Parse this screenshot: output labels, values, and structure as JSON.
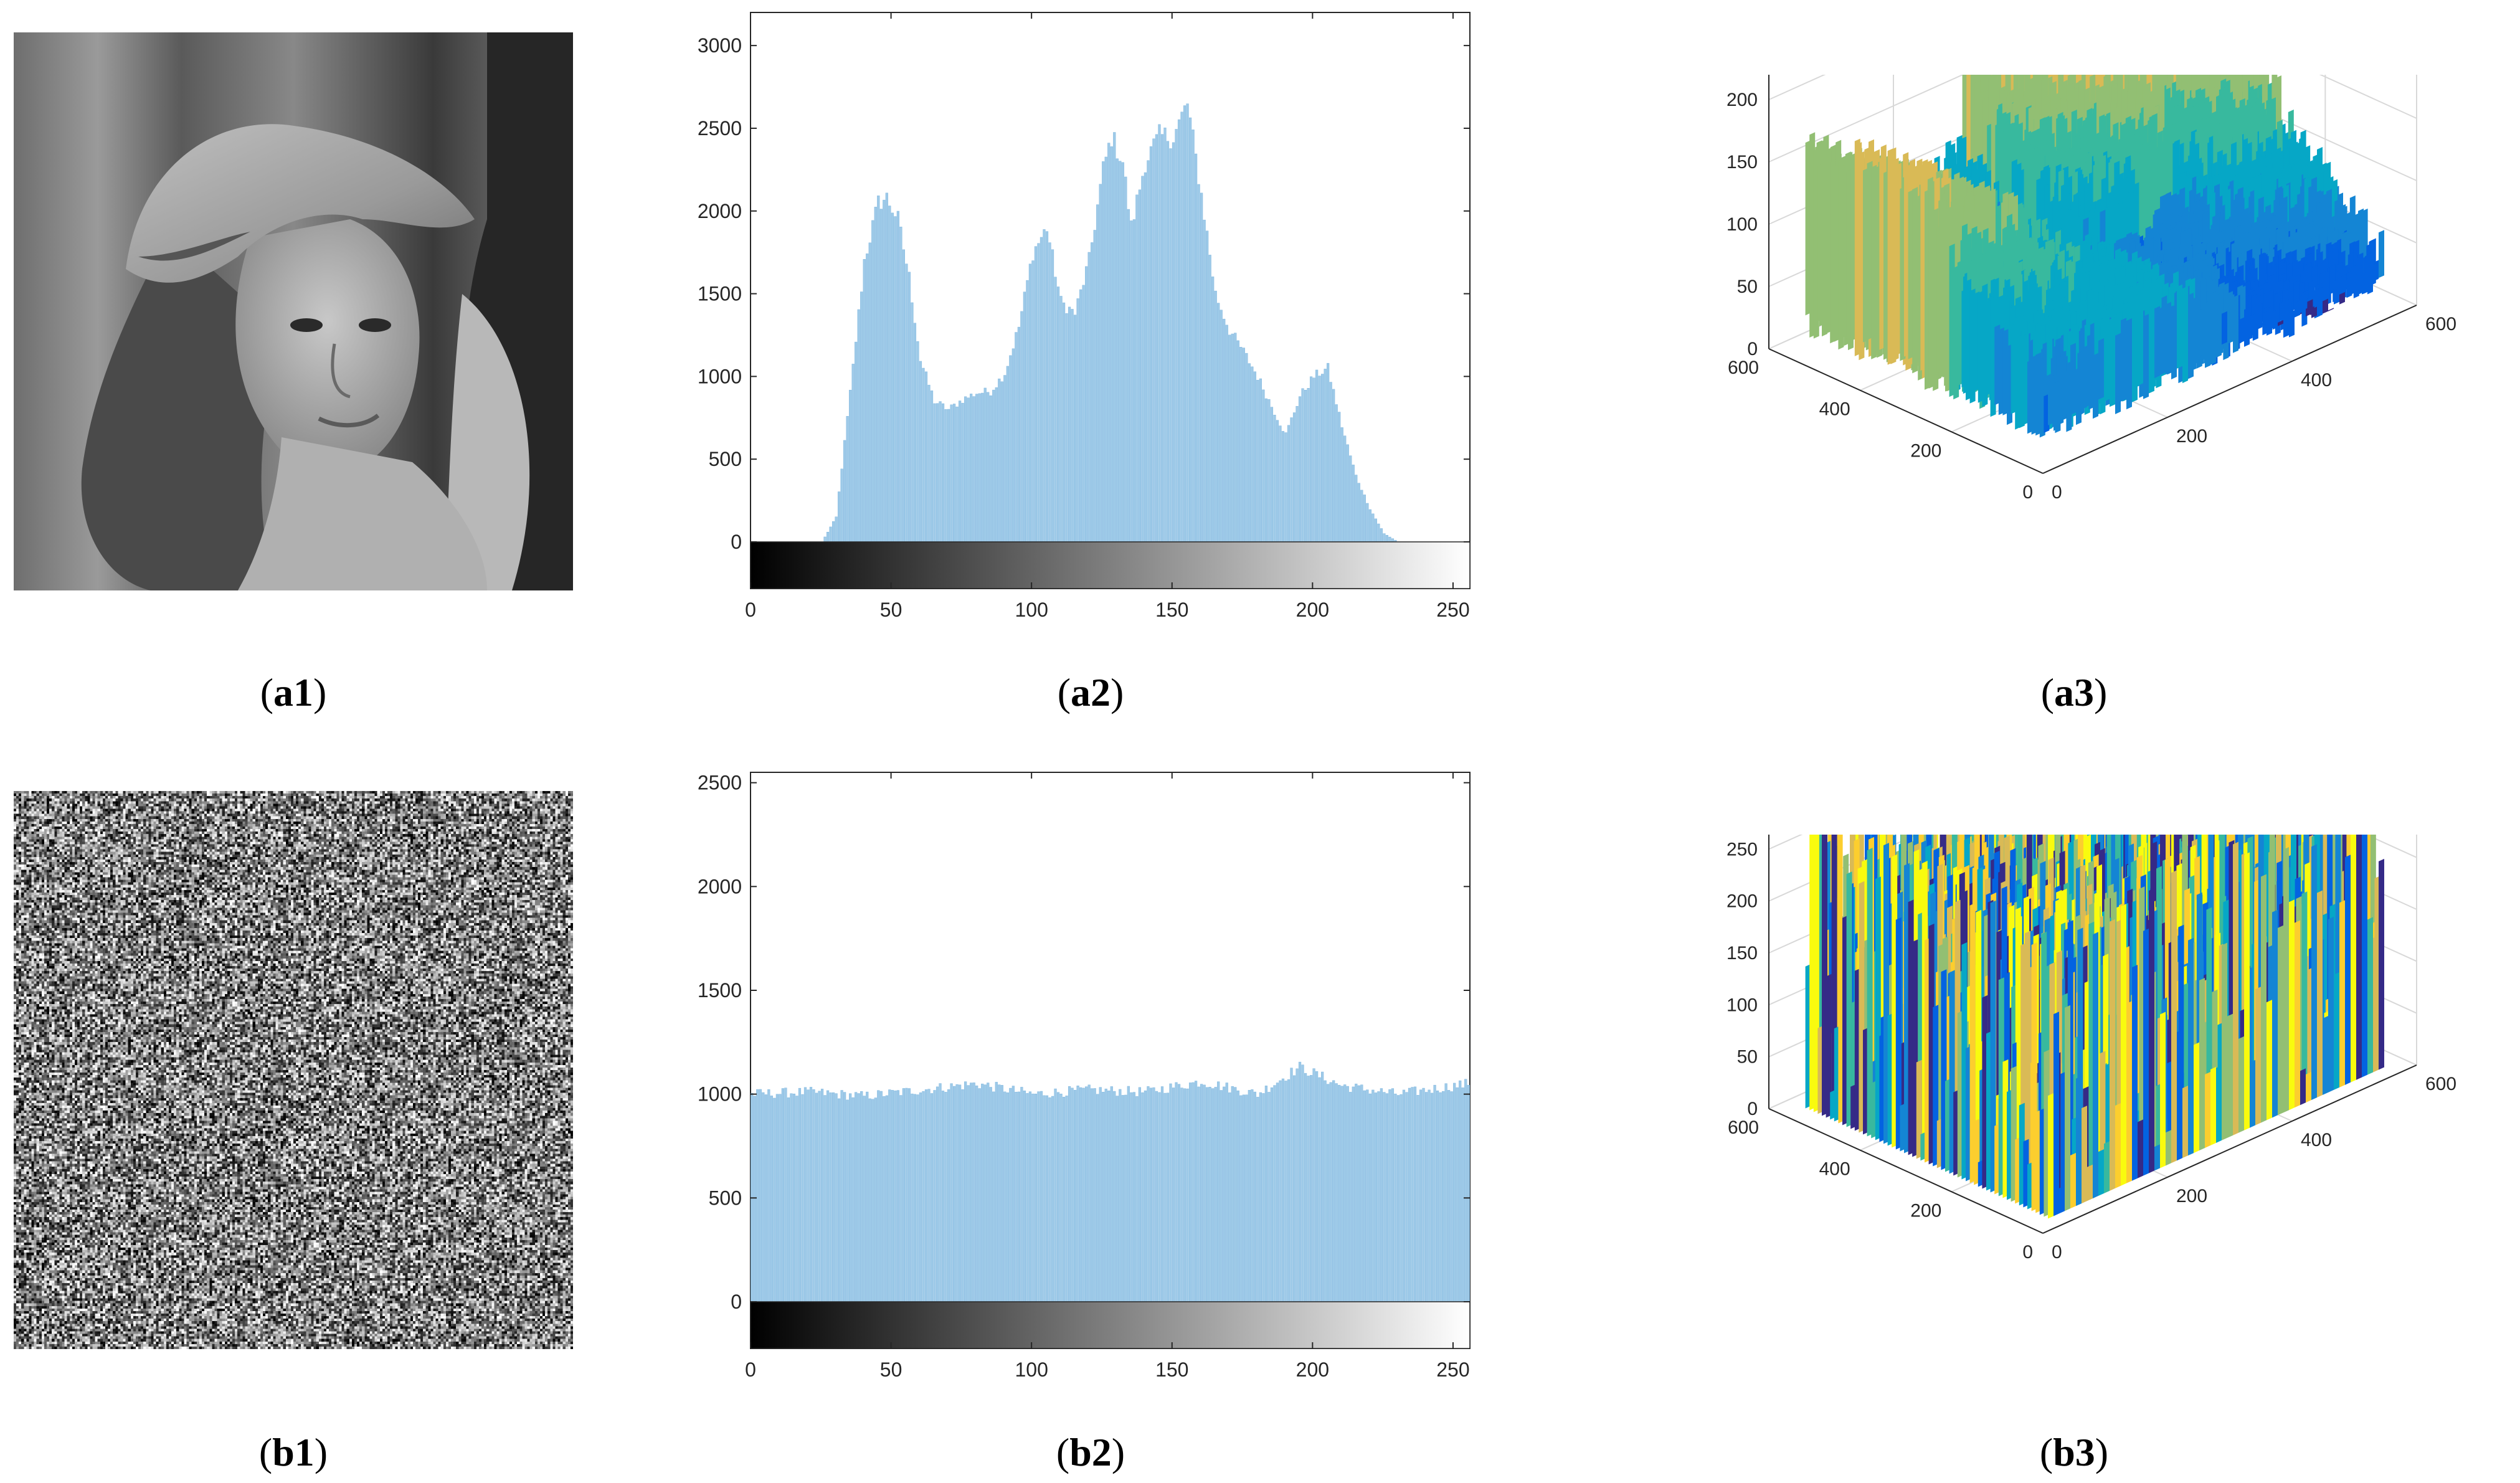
{
  "panels": {
    "a1": {
      "caption": "a1",
      "content": "grayscale photograph: woman wearing a wide-brimmed hat with feather"
    },
    "a2": {
      "caption": "a2"
    },
    "a3": {
      "caption": "a3"
    },
    "b1": {
      "caption": "b1",
      "content": "encrypted noise image"
    },
    "b2": {
      "caption": "b2"
    },
    "b3": {
      "caption": "b3"
    }
  },
  "chart_data": [
    {
      "id": "a2",
      "type": "bar",
      "title": "",
      "xlabel": "",
      "ylabel": "",
      "xlim": [
        0,
        255
      ],
      "ylim": [
        0,
        3200
      ],
      "xticks": [
        0,
        50,
        100,
        150,
        200,
        250
      ],
      "yticks": [
        0,
        500,
        1000,
        1500,
        2000,
        2500,
        3000
      ],
      "color": "#9ecae8",
      "colorbar": "grayscale 0-255",
      "x": [
        25,
        30,
        35,
        40,
        45,
        48,
        52,
        56,
        60,
        65,
        70,
        75,
        80,
        85,
        90,
        95,
        100,
        105,
        110,
        115,
        120,
        125,
        128,
        132,
        135,
        140,
        145,
        150,
        155,
        160,
        165,
        170,
        175,
        180,
        185,
        190,
        195,
        200,
        205,
        210,
        215,
        220,
        225,
        230
      ],
      "values": [
        0,
        150,
        900,
        1700,
        2050,
        2080,
        1950,
        1600,
        1100,
        850,
        800,
        860,
        900,
        910,
        1020,
        1300,
        1750,
        1900,
        1450,
        1380,
        1700,
        2250,
        2450,
        2300,
        1900,
        2300,
        2450,
        2450,
        2650,
        2100,
        1500,
        1280,
        1150,
        1000,
        820,
        650,
        880,
        1000,
        1050,
        700,
        400,
        200,
        50,
        0
      ]
    },
    {
      "id": "b2",
      "type": "bar",
      "title": "",
      "xlabel": "",
      "ylabel": "",
      "xlim": [
        0,
        255
      ],
      "ylim": [
        0,
        2550
      ],
      "xticks": [
        0,
        50,
        100,
        150,
        200,
        250
      ],
      "yticks": [
        0,
        500,
        1000,
        1500,
        2000,
        2500
      ],
      "color": "#9ecae8",
      "colorbar": "grayscale 0-255",
      "x": [
        0,
        20,
        40,
        60,
        80,
        100,
        120,
        140,
        160,
        180,
        195,
        210,
        230,
        255
      ],
      "values": [
        1000,
        1010,
        990,
        1020,
        1050,
        1000,
        1020,
        1010,
        1060,
        1000,
        1130,
        1040,
        1000,
        1050
      ]
    },
    {
      "id": "a3",
      "type": "surface",
      "zticks": [
        0,
        50,
        100,
        150,
        200,
        250
      ],
      "xticks": [
        0,
        200,
        400,
        600
      ],
      "yticks": [
        0,
        200,
        400,
        600
      ],
      "colormap": "parula"
    },
    {
      "id": "b3",
      "type": "surface",
      "zticks": [
        0,
        50,
        100,
        150,
        200,
        250,
        300
      ],
      "xticks": [
        0,
        200,
        400,
        600
      ],
      "yticks": [
        0,
        200,
        400,
        600
      ],
      "colormap": "parula"
    }
  ]
}
